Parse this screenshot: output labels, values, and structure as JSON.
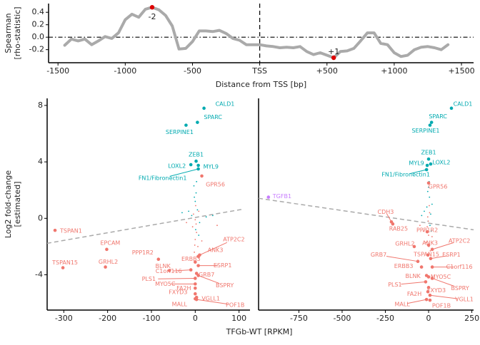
{
  "chart_data": [
    {
      "type": "line",
      "ylabel": [
        "Spearman",
        "[rho-statistic]"
      ],
      "xlabel": "Distance from TSS [bp]",
      "x": [
        -1450,
        -1400,
        -1350,
        -1300,
        -1250,
        -1200,
        -1150,
        -1100,
        -1050,
        -1000,
        -950,
        -900,
        -850,
        -800,
        -750,
        -700,
        -650,
        -600,
        -550,
        -500,
        -450,
        -400,
        -350,
        -300,
        -250,
        -200,
        -150,
        -100,
        -50,
        0,
        50,
        100,
        150,
        200,
        250,
        300,
        350,
        400,
        450,
        500,
        550,
        600,
        650,
        700,
        750,
        800,
        850,
        900,
        950,
        1000,
        1050,
        1100,
        1150,
        1200,
        1250,
        1300,
        1350,
        1400
      ],
      "values": [
        -0.13,
        -0.03,
        -0.06,
        -0.03,
        -0.12,
        -0.06,
        0.01,
        -0.02,
        0.07,
        0.28,
        0.37,
        0.32,
        0.45,
        0.48,
        0.44,
        0.35,
        0.18,
        -0.19,
        -0.18,
        -0.07,
        0.1,
        0.1,
        0.09,
        0.11,
        0.06,
        -0.02,
        -0.05,
        -0.12,
        -0.12,
        -0.12,
        -0.14,
        -0.15,
        -0.17,
        -0.16,
        -0.17,
        -0.15,
        -0.23,
        -0.28,
        -0.25,
        -0.29,
        -0.33,
        -0.23,
        -0.22,
        -0.18,
        -0.06,
        0.07,
        0.07,
        -0.1,
        -0.12,
        -0.25,
        -0.31,
        -0.29,
        -0.2,
        -0.16,
        -0.15,
        -0.17,
        -0.2,
        -0.12
      ],
      "color": "#aaaaaa",
      "xlim": [
        -1570,
        1590
      ],
      "ylim": [
        -0.41,
        0.54
      ],
      "xticks": [
        -1500,
        -1000,
        -500,
        {
          "value": 0,
          "label": "TSS"
        },
        {
          "value": 500,
          "label": "+500"
        },
        {
          "value": 1000,
          "label": "+1000"
        },
        {
          "value": 1500,
          "label": "+1500"
        }
      ],
      "yticks": [
        -0.2,
        {
          "value": 0,
          "label": "0.0"
        },
        0.2,
        0.4
      ],
      "vline": 0,
      "hline": 0,
      "highlights": {
        "x": [
          -800,
          550
        ],
        "values": [
          0.48,
          -0.33
        ],
        "labels": [
          "-2",
          "+1"
        ],
        "color": "#dd0000"
      }
    },
    {
      "type": "scatter",
      "ylabel": [
        "Log2 fold-change",
        "[estimated]"
      ],
      "xlabel": "TFGb-WT [RPKM]",
      "xlim": [
        -338,
        125
      ],
      "ylim": [
        -6.5,
        8.5
      ],
      "xticks": [
        -300,
        -200,
        -100,
        0,
        100
      ],
      "yticks": [
        -4,
        0,
        4,
        8
      ],
      "trend": {
        "x": [
          -338,
          111
        ],
        "values": [
          -1.77,
          0.66
        ],
        "color": "#aaaaaa"
      },
      "series": [
        {
          "color": "#00aab0",
          "size": "large",
          "labels": [
            "CALD1",
            "SPARC",
            "SERPINE1",
            "ZEB1",
            "LOXL2",
            "MYL9",
            "FN1/Fibronectin1"
          ],
          "x": [
            20,
            5,
            -21,
            2,
            -10,
            7,
            7
          ],
          "values": [
            7.8,
            6.8,
            6.6,
            4.05,
            3.8,
            3.75,
            3.5
          ]
        },
        {
          "color": "#f0766d",
          "size": "large",
          "labels": [
            "GPR56",
            "TSPAN1",
            "EPCAM",
            "TSPAN15",
            "GRHL2",
            "PPP1R2",
            "BLNK",
            "C1orf116",
            "PLS1",
            "MYO5C",
            "GRB7",
            "ERBB3",
            "ANK3",
            "ATP2C2",
            "ESRP1",
            "BSPRY",
            "FA2H",
            "FXYD3",
            "VGLL1",
            "MALL",
            "POF1B"
          ],
          "x": [
            15,
            -320,
            -202,
            -302,
            -205,
            -84,
            -59,
            -10,
            0,
            0,
            3,
            0,
            7,
            10,
            7,
            7,
            0,
            0,
            3,
            0,
            3
          ],
          "values": [
            3.0,
            -0.85,
            -2.2,
            -3.5,
            -3.45,
            -2.9,
            -3.7,
            -3.65,
            -4.25,
            -4.65,
            -3.9,
            -3.1,
            -2.7,
            -2.6,
            -3.35,
            -4.05,
            -4.95,
            -5.35,
            -5.6,
            -5.7,
            -5.75
          ]
        },
        {
          "color": "#00aab0",
          "size": "small",
          "x": [
            -3,
            2,
            0,
            5,
            -8,
            10,
            -15,
            25,
            1,
            3,
            -2,
            40,
            -30,
            8
          ],
          "values": [
            2.3,
            1.8,
            1.2,
            0.6,
            0.2,
            -0.3,
            0.5,
            0.1,
            -0.8,
            2.6,
            1.5,
            0.2,
            0.4,
            -1.2
          ]
        },
        {
          "color": "#f0766d",
          "size": "small",
          "x": [
            0,
            2,
            -4,
            6,
            -2,
            3,
            1,
            -6,
            15,
            -20,
            50,
            4,
            -1,
            8,
            0
          ],
          "values": [
            -1.5,
            -0.4,
            0.3,
            -2.0,
            -2.4,
            -1.0,
            0.9,
            -0.6,
            -1.6,
            -0.3,
            -0.5,
            -2.7,
            -1.9,
            0.5,
            -0.1
          ]
        }
      ]
    },
    {
      "type": "scatter",
      "xlim": [
        -983,
        260
      ],
      "ylim": [
        -6.5,
        8.5
      ],
      "xticks": [
        -750,
        -500,
        -250,
        0,
        250
      ],
      "trend": {
        "x": [
          -983,
          260
        ],
        "values": [
          1.42,
          -0.81
        ],
        "color": "#aaaaaa"
      },
      "series": [
        {
          "color": "#00aab0",
          "size": "large",
          "labels": [
            "CALD1",
            "SPARC",
            "SERPINE1",
            "ZEB1",
            "MYL9",
            "LOXL2",
            "FN1/Fibronectin1"
          ],
          "x": [
            132,
            17,
            8,
            0,
            -8,
            12,
            -12
          ],
          "values": [
            7.8,
            6.8,
            6.6,
            4.2,
            3.75,
            3.85,
            3.45
          ]
        },
        {
          "color": "#c77cff",
          "size": "large",
          "labels": [
            "TGFB1"
          ],
          "x": [
            -926
          ],
          "values": [
            1.5
          ]
        },
        {
          "color": "#f0766d",
          "size": "large",
          "labels": [
            "GPR56",
            "CDH3",
            "RAB25",
            "PPP1R2",
            "ANK3",
            "GRHL2",
            "ATP2C2",
            "TSPAN15",
            "ESRP1",
            "GRB7",
            "ERBB3",
            "C1orf116",
            "BLNK",
            "MYO5C",
            "BSPRY",
            "PLS1",
            "FXYD3",
            "FA2H",
            "VGLL1",
            "MALL",
            "POF1B"
          ],
          "x": [
            0,
            -215,
            -207,
            -8,
            0,
            -83,
            21,
            -4,
            12,
            -62,
            -41,
            21,
            -12,
            0,
            21,
            -17,
            0,
            -4,
            8,
            -12,
            8
          ],
          "values": [
            2.5,
            -0.25,
            -0.4,
            -0.95,
            -1.9,
            -2.0,
            -2.2,
            -2.6,
            -2.85,
            -3.05,
            -3.45,
            -3.45,
            -4.05,
            -4.15,
            -4.25,
            -4.5,
            -4.9,
            -5.2,
            -5.45,
            -5.75,
            -5.8
          ]
        },
        {
          "color": "#00aab0",
          "size": "small",
          "x": [
            0,
            5,
            -10,
            12,
            -3,
            20,
            -25,
            8,
            -5,
            3,
            -40,
            15
          ],
          "values": [
            2.2,
            1.5,
            0.8,
            0.3,
            -0.2,
            1.0,
            0.5,
            -0.5,
            1.9,
            2.6,
            0.2,
            -0.9
          ]
        },
        {
          "color": "#f0766d",
          "size": "small",
          "x": [
            0,
            -8,
            6,
            -15,
            10,
            -2,
            -30,
            4,
            20,
            -50,
            2,
            -5
          ],
          "values": [
            -1.2,
            -0.6,
            0.4,
            -1.7,
            -2.3,
            -0.2,
            -0.9,
            0.9,
            -1.3,
            -0.5,
            -2.0,
            0.1
          ]
        }
      ]
    }
  ]
}
